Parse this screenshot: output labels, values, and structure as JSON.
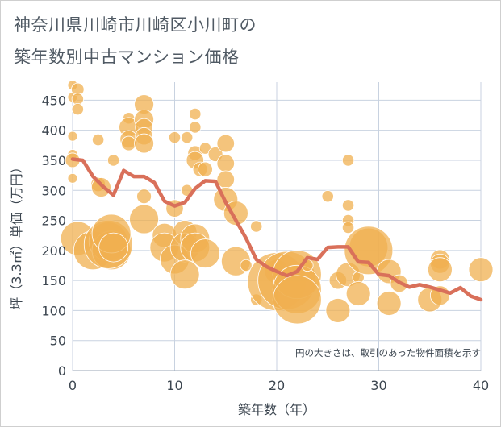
{
  "title_line1": "神奈川県川崎市川崎区小川町の",
  "title_line2": "築年数別中古マンション価格",
  "chart_data": {
    "type": "scatter",
    "title": "神奈川県川崎市川崎区小川町の築年数別中古マンション価格",
    "xlabel": "築年数（年）",
    "ylabel": "坪（3.3㎡）単価（万円）",
    "xlim": [
      0,
      40
    ],
    "ylim": [
      0,
      480
    ],
    "xticks": [
      0,
      10,
      20,
      30,
      40
    ],
    "yticks": [
      0,
      50,
      100,
      150,
      200,
      250,
      300,
      350,
      400,
      450
    ],
    "grid": true,
    "note": "円の大きさは、取引のあった物件面積を示す",
    "colors": {
      "bubble": "#f0b050",
      "line": "#d9705a",
      "grid": "#c8d2e0"
    },
    "bubbles": [
      {
        "x": 0,
        "y": 475,
        "s": 1
      },
      {
        "x": 0,
        "y": 455,
        "s": 1
      },
      {
        "x": 0,
        "y": 390,
        "s": 1
      },
      {
        "x": 0,
        "y": 360,
        "s": 1
      },
      {
        "x": 0,
        "y": 350,
        "s": 1.5
      },
      {
        "x": 0,
        "y": 320,
        "s": 1
      },
      {
        "x": 0.5,
        "y": 468,
        "s": 1.3
      },
      {
        "x": 0.5,
        "y": 452,
        "s": 1.2
      },
      {
        "x": 0.5,
        "y": 435,
        "s": 1.2
      },
      {
        "x": 0.5,
        "y": 220,
        "s": 3.5
      },
      {
        "x": 2,
        "y": 200,
        "s": 4
      },
      {
        "x": 2.5,
        "y": 384,
        "s": 1.2
      },
      {
        "x": 2.5,
        "y": 310,
        "s": 1.5
      },
      {
        "x": 2.8,
        "y": 305,
        "s": 2
      },
      {
        "x": 3.5,
        "y": 215,
        "s": 4
      },
      {
        "x": 3.8,
        "y": 200,
        "s": 4
      },
      {
        "x": 3.5,
        "y": 210,
        "s": 5
      },
      {
        "x": 3.8,
        "y": 228,
        "s": 4
      },
      {
        "x": 4,
        "y": 350,
        "s": 1.2
      },
      {
        "x": 4,
        "y": 205,
        "s": 3
      },
      {
        "x": 5.5,
        "y": 420,
        "s": 1.2
      },
      {
        "x": 5.5,
        "y": 405,
        "s": 2
      },
      {
        "x": 5.5,
        "y": 385,
        "s": 1.8
      },
      {
        "x": 5.5,
        "y": 378,
        "s": 1.5
      },
      {
        "x": 7,
        "y": 443,
        "s": 2
      },
      {
        "x": 7,
        "y": 418,
        "s": 2
      },
      {
        "x": 7,
        "y": 405,
        "s": 1.8
      },
      {
        "x": 7,
        "y": 390,
        "s": 1.8
      },
      {
        "x": 7,
        "y": 378,
        "s": 2
      },
      {
        "x": 7,
        "y": 252,
        "s": 3
      },
      {
        "x": 7,
        "y": 290,
        "s": 1.5
      },
      {
        "x": 9,
        "y": 225,
        "s": 2.5
      },
      {
        "x": 9,
        "y": 205,
        "s": 3
      },
      {
        "x": 10,
        "y": 388,
        "s": 1.2
      },
      {
        "x": 10,
        "y": 270,
        "s": 1.8
      },
      {
        "x": 10,
        "y": 185,
        "s": 3
      },
      {
        "x": 11,
        "y": 230,
        "s": 2.5
      },
      {
        "x": 11,
        "y": 205,
        "s": 3
      },
      {
        "x": 11,
        "y": 160,
        "s": 3
      },
      {
        "x": 11.2,
        "y": 388,
        "s": 1.2
      },
      {
        "x": 11.2,
        "y": 300,
        "s": 1.2
      },
      {
        "x": 12,
        "y": 427,
        "s": 1.2
      },
      {
        "x": 12,
        "y": 405,
        "s": 1.2
      },
      {
        "x": 12,
        "y": 362,
        "s": 1.5
      },
      {
        "x": 12,
        "y": 350,
        "s": 1.8
      },
      {
        "x": 12,
        "y": 220,
        "s": 3
      },
      {
        "x": 12,
        "y": 205,
        "s": 3
      },
      {
        "x": 12.5,
        "y": 335,
        "s": 1.5
      },
      {
        "x": 13,
        "y": 370,
        "s": 1.2
      },
      {
        "x": 13,
        "y": 335,
        "s": 1.5
      },
      {
        "x": 13,
        "y": 195,
        "s": 3
      },
      {
        "x": 14,
        "y": 360,
        "s": 1.5
      },
      {
        "x": 15,
        "y": 378,
        "s": 1.8
      },
      {
        "x": 15,
        "y": 345,
        "s": 1.8
      },
      {
        "x": 15,
        "y": 318,
        "s": 1.8
      },
      {
        "x": 15,
        "y": 285,
        "s": 2.5
      },
      {
        "x": 16,
        "y": 262,
        "s": 2.5
      },
      {
        "x": 16,
        "y": 182,
        "s": 3
      },
      {
        "x": 17,
        "y": 175,
        "s": 1.2
      },
      {
        "x": 18,
        "y": 240,
        "s": 1.2
      },
      {
        "x": 18,
        "y": 118,
        "s": 1.2
      },
      {
        "x": 20,
        "y": 175,
        "s": 1.2
      },
      {
        "x": 20,
        "y": 165,
        "s": 2.5
      },
      {
        "x": 20,
        "y": 148,
        "s": 6
      },
      {
        "x": 21,
        "y": 150,
        "s": 6
      },
      {
        "x": 22,
        "y": 160,
        "s": 5
      },
      {
        "x": 22,
        "y": 135,
        "s": 5
      },
      {
        "x": 22,
        "y": 118,
        "s": 5
      },
      {
        "x": 23,
        "y": 175,
        "s": 1.2
      },
      {
        "x": 25,
        "y": 290,
        "s": 1.2
      },
      {
        "x": 26,
        "y": 150,
        "s": 1.8
      },
      {
        "x": 26,
        "y": 100,
        "s": 2.5
      },
      {
        "x": 27,
        "y": 350,
        "s": 1.2
      },
      {
        "x": 27,
        "y": 275,
        "s": 1.2
      },
      {
        "x": 27,
        "y": 250,
        "s": 1.2
      },
      {
        "x": 27,
        "y": 238,
        "s": 1.2
      },
      {
        "x": 27,
        "y": 160,
        "s": 2.5
      },
      {
        "x": 28,
        "y": 155,
        "s": 1.2
      },
      {
        "x": 28,
        "y": 128,
        "s": 2.5
      },
      {
        "x": 29,
        "y": 205,
        "s": 4
      },
      {
        "x": 29,
        "y": 200,
        "s": 5
      },
      {
        "x": 31,
        "y": 165,
        "s": 2.5
      },
      {
        "x": 31,
        "y": 112,
        "s": 2.5
      },
      {
        "x": 32,
        "y": 145,
        "s": 1.8
      },
      {
        "x": 35,
        "y": 118,
        "s": 2.5
      },
      {
        "x": 36,
        "y": 185,
        "s": 2
      },
      {
        "x": 36,
        "y": 178,
        "s": 2
      },
      {
        "x": 36,
        "y": 168,
        "s": 2.5
      },
      {
        "x": 36,
        "y": 125,
        "s": 2
      },
      {
        "x": 40,
        "y": 168,
        "s": 2.5
      }
    ],
    "line": {
      "x": [
        0,
        1,
        2,
        3,
        4,
        5,
        6,
        7,
        8,
        9,
        10,
        11,
        12,
        13,
        14,
        15,
        16,
        17,
        18,
        19,
        20,
        21,
        22,
        23,
        24,
        25,
        26,
        27,
        28,
        29,
        30,
        31,
        32,
        33,
        34,
        35,
        36,
        37,
        38,
        39,
        40
      ],
      "y": [
        352,
        350,
        323,
        306,
        292,
        333,
        323,
        323,
        313,
        282,
        274,
        280,
        303,
        316,
        315,
        280,
        250,
        220,
        185,
        173,
        165,
        158,
        165,
        188,
        185,
        205,
        206,
        206,
        181,
        180,
        160,
        158,
        147,
        139,
        143,
        139,
        134,
        129,
        138,
        124,
        118
      ]
    }
  }
}
